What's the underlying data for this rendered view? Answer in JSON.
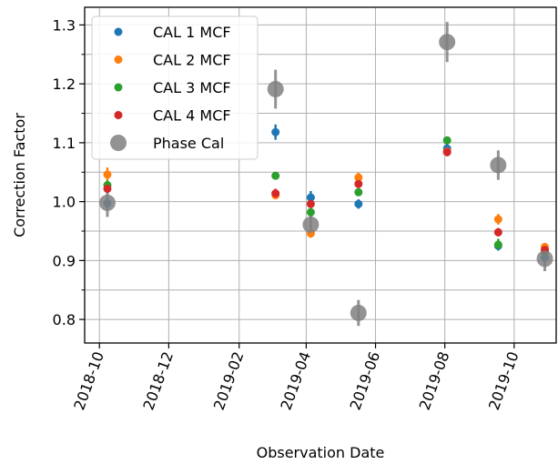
{
  "chart_data": {
    "type": "scatter",
    "title": "",
    "xlabel": "Observation Date",
    "ylabel": "Correction Factor",
    "xlim": [
      "2018-09-18",
      "2019-11-07"
    ],
    "ylim": [
      0.76,
      1.33
    ],
    "x_ticks": [
      "2018-10",
      "2018-12",
      "2019-02",
      "2019-04",
      "2019-06",
      "2019-08",
      "2019-10"
    ],
    "y_ticks": [
      0.8,
      0.9,
      1.0,
      1.1,
      1.2,
      1.3
    ],
    "y_minor_ticks": [
      0.85,
      0.95,
      1.05,
      1.15,
      1.25
    ],
    "grid": true,
    "legend_position": "top-left",
    "series": [
      {
        "name": "CAL 1 MCF",
        "color": "#1f77b4",
        "points": [
          {
            "x": "2018-10-08",
            "y": 0.997,
            "err": 0.01
          },
          {
            "x": "2019-03-05",
            "y": 1.118,
            "err": 0.013
          },
          {
            "x": "2019-04-05",
            "y": 1.007,
            "err": 0.011
          },
          {
            "x": "2019-05-17",
            "y": 0.996,
            "err": 0.008
          },
          {
            "x": "2019-08-03",
            "y": 1.09,
            "err": 0.008
          },
          {
            "x": "2019-09-17",
            "y": 0.925,
            "err": 0.008
          },
          {
            "x": "2019-10-28",
            "y": 0.905,
            "err": 0.008
          }
        ]
      },
      {
        "name": "CAL 2 MCF",
        "color": "#ff7f0e",
        "points": [
          {
            "x": "2018-10-08",
            "y": 1.046,
            "err": 0.012
          },
          {
            "x": "2019-03-05",
            "y": 1.011,
            "err": 0.007
          },
          {
            "x": "2019-04-05",
            "y": 0.946,
            "err": 0.007
          },
          {
            "x": "2019-05-17",
            "y": 1.041,
            "err": 0.008
          },
          {
            "x": "2019-08-03",
            "y": 1.085,
            "err": 0.008
          },
          {
            "x": "2019-09-17",
            "y": 0.97,
            "err": 0.009
          },
          {
            "x": "2019-10-28",
            "y": 0.923,
            "err": 0.007
          }
        ]
      },
      {
        "name": "CAL 3 MCF",
        "color": "#2ca02c",
        "points": [
          {
            "x": "2018-10-08",
            "y": 1.028,
            "err": 0.008
          },
          {
            "x": "2019-03-05",
            "y": 1.044,
            "err": 0.005
          },
          {
            "x": "2019-04-05",
            "y": 0.982,
            "err": 0.006
          },
          {
            "x": "2019-05-17",
            "y": 1.016,
            "err": 0.006
          },
          {
            "x": "2019-08-03",
            "y": 1.104,
            "err": 0.005
          },
          {
            "x": "2019-09-17",
            "y": 0.927,
            "err": 0.01
          },
          {
            "x": "2019-10-28",
            "y": 0.915,
            "err": 0.006
          }
        ]
      },
      {
        "name": "CAL 4 MCF",
        "color": "#d62728",
        "points": [
          {
            "x": "2018-10-08",
            "y": 1.022,
            "err": 0.008
          },
          {
            "x": "2019-03-05",
            "y": 1.014,
            "err": 0.008
          },
          {
            "x": "2019-04-05",
            "y": 0.996,
            "err": 0.007
          },
          {
            "x": "2019-05-17",
            "y": 1.03,
            "err": 0.007
          },
          {
            "x": "2019-08-03",
            "y": 1.084,
            "err": 0.006
          },
          {
            "x": "2019-09-17",
            "y": 0.948,
            "err": 0.007
          },
          {
            "x": "2019-10-28",
            "y": 0.918,
            "err": 0.007
          }
        ]
      },
      {
        "name": "Phase Cal",
        "color": "#808080",
        "points": [
          {
            "x": "2018-10-08",
            "y": 0.998,
            "err": 0.024
          },
          {
            "x": "2019-03-05",
            "y": 1.191,
            "err": 0.033
          },
          {
            "x": "2019-04-05",
            "y": 0.961,
            "err": 0.022
          },
          {
            "x": "2019-05-17",
            "y": 0.811,
            "err": 0.022
          },
          {
            "x": "2019-08-03",
            "y": 1.271,
            "err": 0.034
          },
          {
            "x": "2019-09-17",
            "y": 1.062,
            "err": 0.025
          },
          {
            "x": "2019-10-28",
            "y": 0.903,
            "err": 0.021
          }
        ]
      }
    ]
  }
}
